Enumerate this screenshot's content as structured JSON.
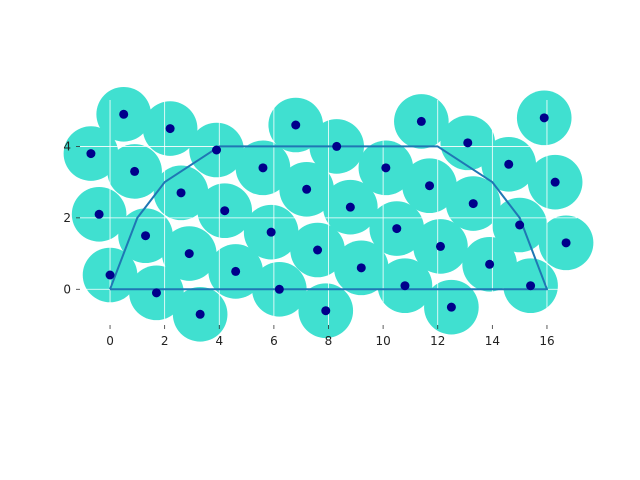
{
  "chart_data": {
    "type": "scatter",
    "title": "",
    "xlabel": "",
    "ylabel": "",
    "xlim": [
      -1.1,
      17.1
    ],
    "ylim": [
      -1.0,
      5.3
    ],
    "grid": true,
    "x_ticks": [
      0,
      2,
      4,
      6,
      8,
      10,
      12,
      14,
      16
    ],
    "y_ticks": [
      0,
      2,
      4
    ],
    "x_tick_labels": [
      "0",
      "2",
      "4",
      "6",
      "8",
      "10",
      "12",
      "14",
      "16"
    ],
    "y_tick_labels": [
      "0",
      "2",
      "4"
    ],
    "colors": {
      "buffer": "#40e0d0",
      "points": "#00008b",
      "outline": "#1f77b4",
      "grid": "#ffffff"
    },
    "buffer_radius": 1.0,
    "points": [
      {
        "x": -0.7,
        "y": 3.8
      },
      {
        "x": 0.5,
        "y": 4.9
      },
      {
        "x": 2.2,
        "y": 4.5
      },
      {
        "x": 3.9,
        "y": 3.9
      },
      {
        "x": 6.8,
        "y": 4.6
      },
      {
        "x": 8.3,
        "y": 4.0
      },
      {
        "x": 11.4,
        "y": 4.7
      },
      {
        "x": 13.1,
        "y": 4.1
      },
      {
        "x": 15.9,
        "y": 4.8
      },
      {
        "x": -0.4,
        "y": 2.1
      },
      {
        "x": 0.9,
        "y": 3.3
      },
      {
        "x": 2.6,
        "y": 2.7
      },
      {
        "x": 4.2,
        "y": 2.2
      },
      {
        "x": 5.6,
        "y": 3.4
      },
      {
        "x": 7.2,
        "y": 2.8
      },
      {
        "x": 8.8,
        "y": 2.3
      },
      {
        "x": 10.1,
        "y": 3.4
      },
      {
        "x": 11.7,
        "y": 2.9
      },
      {
        "x": 13.3,
        "y": 2.4
      },
      {
        "x": 14.6,
        "y": 3.5
      },
      {
        "x": 16.3,
        "y": 3.0
      },
      {
        "x": 1.3,
        "y": 1.5
      },
      {
        "x": 2.9,
        "y": 1.0
      },
      {
        "x": 5.9,
        "y": 1.6
      },
      {
        "x": 7.6,
        "y": 1.1
      },
      {
        "x": 10.5,
        "y": 1.7
      },
      {
        "x": 12.1,
        "y": 1.2
      },
      {
        "x": 15.0,
        "y": 1.8
      },
      {
        "x": 16.7,
        "y": 1.3
      },
      {
        "x": 0.0,
        "y": 0.4
      },
      {
        "x": 1.7,
        "y": -0.1
      },
      {
        "x": 3.3,
        "y": -0.7
      },
      {
        "x": 4.6,
        "y": 0.5
      },
      {
        "x": 6.2,
        "y": 0.0
      },
      {
        "x": 7.9,
        "y": -0.6
      },
      {
        "x": 9.2,
        "y": 0.6
      },
      {
        "x": 10.8,
        "y": 0.1
      },
      {
        "x": 12.5,
        "y": -0.5
      },
      {
        "x": 13.9,
        "y": 0.7
      },
      {
        "x": 15.4,
        "y": 0.1
      }
    ],
    "outline": [
      {
        "x": 0,
        "y": 0
      },
      {
        "x": 1,
        "y": 2
      },
      {
        "x": 2,
        "y": 3
      },
      {
        "x": 4,
        "y": 4
      },
      {
        "x": 12,
        "y": 4
      },
      {
        "x": 14,
        "y": 3
      },
      {
        "x": 15,
        "y": 2
      },
      {
        "x": 16,
        "y": 0
      },
      {
        "x": 0,
        "y": 0
      }
    ]
  }
}
